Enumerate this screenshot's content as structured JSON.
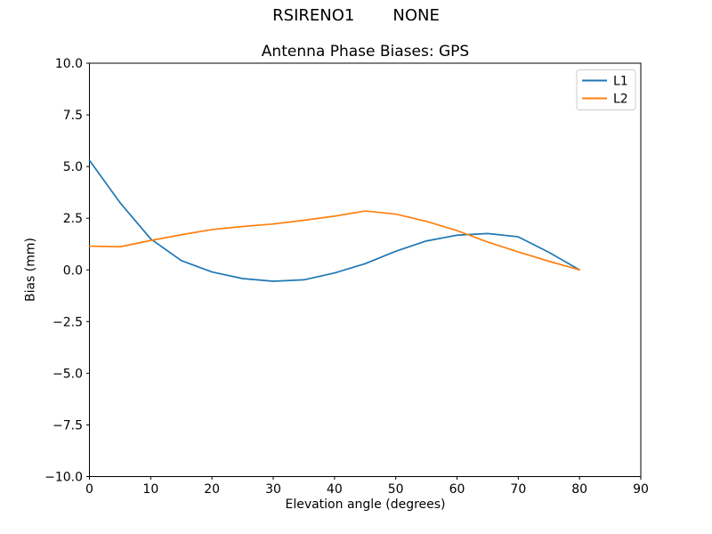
{
  "figure": {
    "suptitle_station": "RSIRENO1",
    "suptitle_mode": "NONE",
    "background": "#ffffff"
  },
  "chart_data": {
    "type": "line",
    "title": "Antenna Phase Biases: GPS",
    "xlabel": "Elevation angle (degrees)",
    "ylabel": "Bias (mm)",
    "xlim": [
      0,
      90
    ],
    "ylim": [
      -10,
      10
    ],
    "grid": false,
    "legend_position": "upper right",
    "axis_color": "#000000",
    "legend_border_color": "#cccccc",
    "x": [
      0,
      5,
      10,
      15,
      20,
      25,
      30,
      35,
      40,
      45,
      50,
      55,
      60,
      65,
      70,
      75,
      80
    ],
    "series": [
      {
        "name": "L1",
        "color": "#1f77b4",
        "values": [
          5.3,
          3.25,
          1.5,
          0.45,
          -0.1,
          -0.42,
          -0.55,
          -0.48,
          -0.15,
          0.3,
          0.9,
          1.4,
          1.68,
          1.76,
          1.6,
          0.85,
          0.0
        ]
      },
      {
        "name": "L2",
        "color": "#ff7f0e",
        "values": [
          1.15,
          1.12,
          1.42,
          1.7,
          1.95,
          2.1,
          2.22,
          2.4,
          2.6,
          2.85,
          2.7,
          2.35,
          1.9,
          1.35,
          0.87,
          0.42,
          0.0
        ]
      }
    ],
    "xticks": [
      0,
      10,
      20,
      30,
      40,
      50,
      60,
      70,
      80,
      90
    ],
    "xtick_labels": [
      "0",
      "10",
      "20",
      "30",
      "40",
      "50",
      "60",
      "70",
      "80",
      "90"
    ],
    "yticks": [
      10,
      7.5,
      5,
      2.5,
      0,
      -2.5,
      -5,
      -7.5,
      -10
    ],
    "ytick_labels": [
      "10.0",
      "7.5",
      "5.0",
      "2.5",
      "0.0",
      "−2.5",
      "−5.0",
      "−7.5",
      "−10.0"
    ]
  }
}
